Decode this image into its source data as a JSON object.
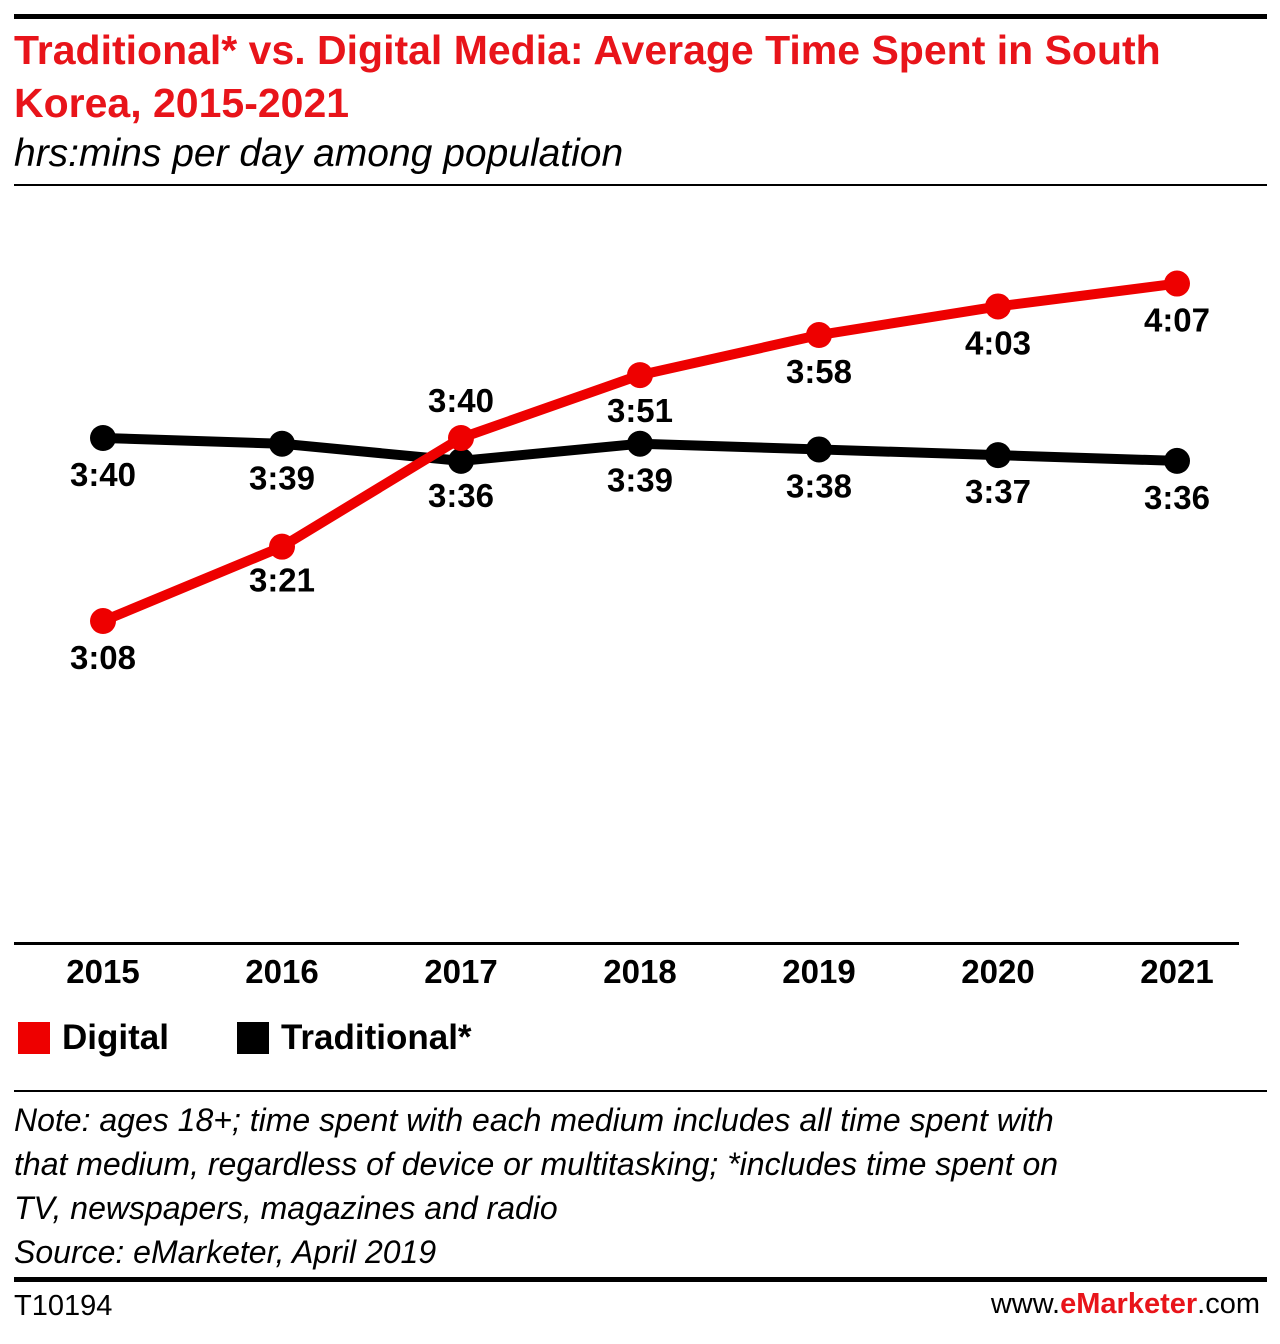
{
  "header": {
    "title": "Traditional* vs. Digital Media: Average Time Spent in South Korea, 2015-2021",
    "subtitle": "hrs:mins per day among population"
  },
  "chart_data": {
    "type": "line",
    "title": "Traditional* vs. Digital Media: Average Time Spent in South Korea, 2015-2021",
    "subtitle": "hrs:mins per day among population",
    "xlabel": "",
    "ylabel": "",
    "categories": [
      "2015",
      "2016",
      "2017",
      "2018",
      "2019",
      "2020",
      "2021"
    ],
    "series": [
      {
        "name": "Digital",
        "color": "#ee0000",
        "values_minutes": [
          188,
          201,
          220,
          231,
          238,
          243,
          247
        ],
        "labels": [
          "3:08",
          "3:21",
          "3:40",
          "3:51",
          "3:58",
          "4:03",
          "4:07"
        ]
      },
      {
        "name": "Traditional*",
        "color": "#000000",
        "values_minutes": [
          220,
          219,
          216,
          219,
          218,
          217,
          216
        ],
        "labels": [
          "3:40",
          "3:39",
          "3:36",
          "3:39",
          "3:38",
          "3:37",
          "3:36"
        ]
      }
    ],
    "grid": false,
    "legend": "bottom-left"
  },
  "legend": {
    "items": [
      {
        "label": "Digital",
        "color": "#ee0000"
      },
      {
        "label": "Traditional*",
        "color": "#000000"
      }
    ]
  },
  "note": {
    "line1": "Note: ages 18+; time spent with each medium includes all time spent with",
    "line2": "that medium, regardless of device or multitasking; *includes time spent on",
    "line3": "TV, newspapers, magazines and radio",
    "source": "Source: eMarketer, April 2019"
  },
  "footer": {
    "id": "T10194",
    "site_prefix": "www.",
    "site_brand": "eMarketer",
    "site_suffix": ".com"
  }
}
